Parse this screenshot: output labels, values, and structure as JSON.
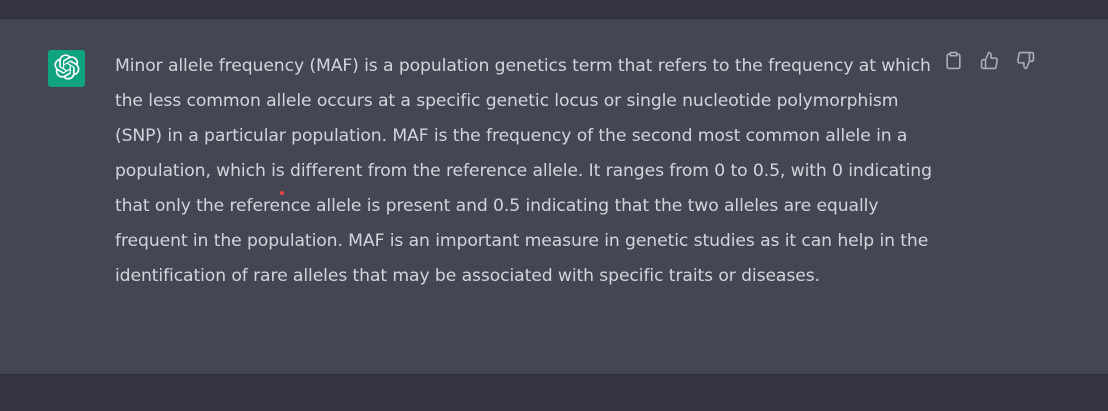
{
  "message": {
    "role_avatar_icon": "openai-logo-icon",
    "text": "Minor allele frequency (MAF) is a population genetics term that refers to the frequency at which the less common allele occurs at a specific genetic locus or single nucleotide polymorphism (SNP) in a particular population. MAF is the frequency of the second most common allele in a population, which is different from the reference allele. It ranges from 0 to 0.5, with 0 indicating that only the reference allele is present and 0.5 indicating that the two alleles are equally frequent in the population. MAF is an important measure in genetic studies as it can help in the identification of rare alleles that may be associated with specific traits or diseases.",
    "actions": [
      {
        "icon": "clipboard-icon"
      },
      {
        "icon": "thumbs-up-icon"
      },
      {
        "icon": "thumbs-down-icon"
      }
    ]
  },
  "colors": {
    "page_background": "#343541",
    "message_background": "#444654",
    "avatar_background": "#10a37f",
    "text": "#d1d5db",
    "icon": "#acacbe",
    "cursor_dot": "#ef4444"
  }
}
